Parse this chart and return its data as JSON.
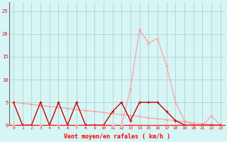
{
  "x": [
    0,
    1,
    2,
    3,
    4,
    5,
    6,
    7,
    8,
    9,
    10,
    11,
    12,
    13,
    14,
    15,
    16,
    17,
    18,
    19,
    20,
    21,
    22,
    23
  ],
  "rafales": [
    0,
    0,
    0,
    0,
    0,
    0,
    0,
    0,
    0,
    0,
    0,
    0,
    0,
    8,
    21,
    18,
    19,
    13,
    5,
    1,
    0,
    0,
    2,
    0
  ],
  "moyen": [
    5,
    0,
    0,
    5,
    0,
    5,
    0,
    5,
    0,
    0,
    0,
    3,
    5,
    1,
    5,
    5,
    5,
    3,
    1,
    0,
    0,
    0,
    0,
    0
  ],
  "diagonal": [
    5,
    4.8,
    4.6,
    4.3,
    4.1,
    3.9,
    3.7,
    3.4,
    3.2,
    3.0,
    2.8,
    2.5,
    2.3,
    2.1,
    1.9,
    1.6,
    1.4,
    1.2,
    1.0,
    0.7,
    0.5,
    0.3,
    0.1,
    0
  ],
  "rafales_color": "#ff9999",
  "moyen_color": "#cc0000",
  "diagonal_color": "#ff9999",
  "bg_color": "#d6f5f5",
  "grid_color": "#b0c8c8",
  "text_color": "#ff0000",
  "xlabel": "Vent moyen/en rafales ( km/h )",
  "ylim": [
    0,
    27
  ],
  "xlim": [
    -0.5,
    23.5
  ],
  "yticks": [
    0,
    5,
    10,
    15,
    20,
    25
  ],
  "figwidth": 3.2,
  "figheight": 2.0,
  "dpi": 100
}
